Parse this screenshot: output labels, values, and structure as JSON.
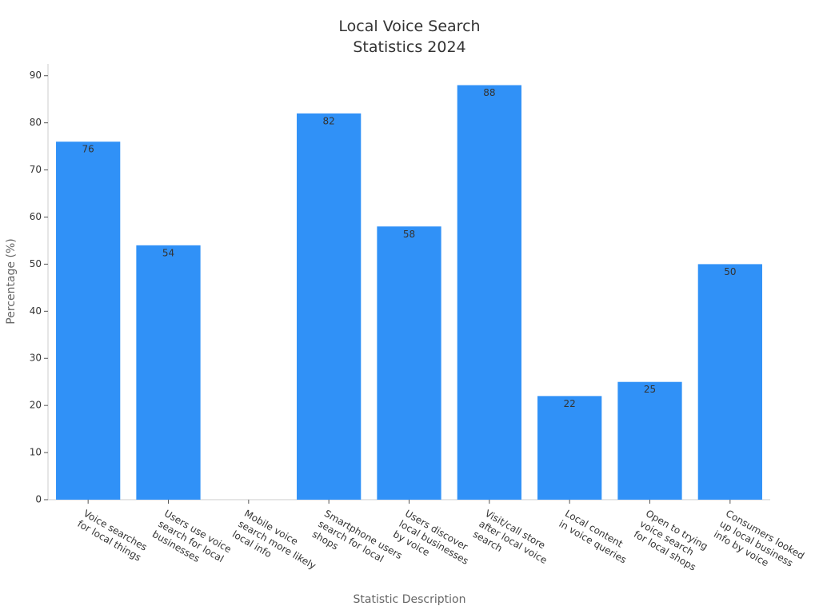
{
  "chart_data": {
    "type": "bar",
    "title": "Local Voice Search\nStatistics 2024",
    "x_label": "Statistic Description",
    "y_label": "Percentage (%)",
    "categories": [
      "Voice searches\nfor local things",
      "Users use voice\nsearch for local\nbusinesses",
      "Mobile voice\nsearch more likely\nlocal info",
      "Smartphone users\nsearch for local\nshops",
      "Users discover\nlocal businesses\nby voice",
      "Visit/call store\nafter local voice\nsearch",
      "Local content\nin voice queries",
      "Open to trying\nvoice search\nfor local shops",
      "Consumers looked\nup local business\ninfo by voice"
    ],
    "values": [
      76,
      54,
      null,
      82,
      58,
      88,
      22,
      25,
      50
    ],
    "color": "#3091f7",
    "ylim": [
      0,
      92.5
    ],
    "yticks": [
      0,
      10,
      20,
      30,
      40,
      50,
      60,
      70,
      80,
      90
    ],
    "grid": false
  }
}
